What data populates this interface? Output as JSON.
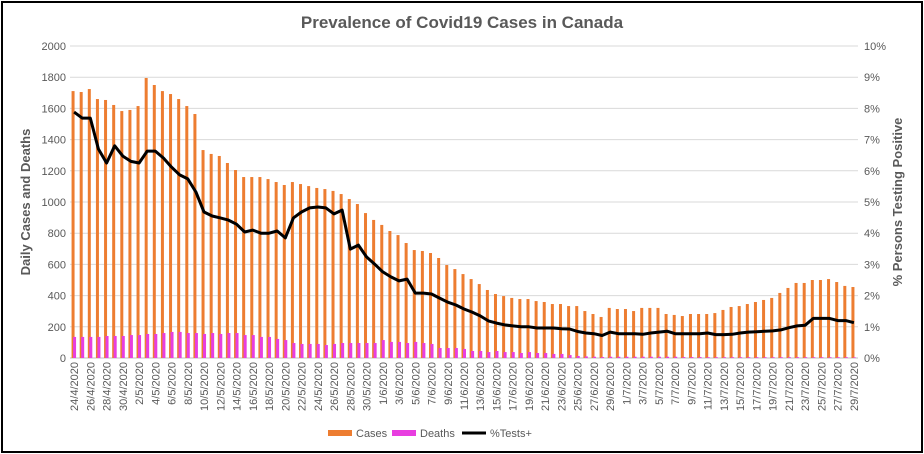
{
  "chart_data": {
    "type": "bar+line",
    "title": "Prevalence of Covid19 Cases in Canada",
    "ylabel": "Daily Cases and Deaths",
    "y2label": "% Persons Testing Positive",
    "ylim": [
      0,
      2000
    ],
    "y2lim": [
      0,
      10
    ],
    "yticks": [
      "0",
      "200",
      "400",
      "600",
      "800",
      "1000",
      "1200",
      "1400",
      "1600",
      "1800",
      "2000"
    ],
    "y2ticks": [
      "0%",
      "1%",
      "2%",
      "3%",
      "4%",
      "5%",
      "6%",
      "7%",
      "8%",
      "9%",
      "10%"
    ],
    "grid": true,
    "legend_position": "bottom",
    "colors": {
      "Cases": "#ed7d31",
      "Deaths": "#e83ee0",
      "%Tests+": "#000000"
    },
    "categories": [
      "24/4/2020",
      "25/4/2020",
      "26/4/2020",
      "27/4/2020",
      "28/4/2020",
      "29/4/2020",
      "30/4/2020",
      "1/5/2020",
      "2/5/2020",
      "3/5/2020",
      "4/5/2020",
      "5/5/2020",
      "6/5/2020",
      "7/5/2020",
      "8/5/2020",
      "9/5/2020",
      "10/5/2020",
      "11/5/2020",
      "12/5/2020",
      "13/5/2020",
      "14/5/2020",
      "15/5/2020",
      "16/5/2020",
      "17/5/2020",
      "18/5/2020",
      "19/5/2020",
      "20/5/2020",
      "21/5/2020",
      "22/5/2020",
      "23/5/2020",
      "24/5/2020",
      "25/5/2020",
      "26/5/2020",
      "27/5/2020",
      "28/5/2020",
      "29/5/2020",
      "30/5/2020",
      "31/5/2020",
      "1/6/2020",
      "2/6/2020",
      "3/6/2020",
      "4/6/2020",
      "5/6/2020",
      "6/6/2020",
      "7/6/2020",
      "8/6/2020",
      "9/6/2020",
      "10/6/2020",
      "11/6/2020",
      "12/6/2020",
      "13/6/2020",
      "14/6/2020",
      "15/6/2020",
      "16/6/2020",
      "17/6/2020",
      "18/6/2020",
      "19/6/2020",
      "20/6/2020",
      "21/6/2020",
      "22/6/2020",
      "23/6/2020",
      "24/6/2020",
      "25/6/2020",
      "26/6/2020",
      "27/6/2020",
      "28/6/2020",
      "29/6/2020",
      "30/6/2020",
      "1/7/2020",
      "2/7/2020",
      "3/7/2020",
      "4/7/2020",
      "5/7/2020",
      "6/7/2020",
      "7/7/2020",
      "8/7/2020",
      "9/7/2020",
      "10/7/2020",
      "11/7/2020",
      "12/7/2020",
      "13/7/2020",
      "14/7/2020",
      "15/7/2020",
      "16/7/2020",
      "17/7/2020",
      "18/7/2020",
      "19/7/2020",
      "20/7/2020",
      "21/7/2020",
      "22/7/2020",
      "23/7/2020",
      "24/7/2020",
      "25/7/2020",
      "26/7/2020",
      "27/7/2020",
      "28/7/2020",
      "29/7/2020"
    ],
    "series": [
      {
        "name": "Cases",
        "type": "bar",
        "axis": "left",
        "values": [
          1711,
          1705,
          1724,
          1660,
          1654,
          1622,
          1583,
          1590,
          1615,
          1795,
          1750,
          1711,
          1692,
          1660,
          1615,
          1564,
          1333,
          1308,
          1295,
          1250,
          1205,
          1160,
          1160,
          1160,
          1147,
          1128,
          1109,
          1128,
          1115,
          1102,
          1090,
          1083,
          1071,
          1051,
          1019,
          987,
          929,
          885,
          853,
          814,
          788,
          737,
          692,
          686,
          673,
          641,
          596,
          570,
          538,
          506,
          474,
          436,
          410,
          397,
          385,
          378,
          378,
          365,
          359,
          346,
          346,
          333,
          333,
          301,
          282,
          263,
          321,
          314,
          314,
          301,
          321,
          321,
          321,
          282,
          276,
          269,
          282,
          282,
          282,
          288,
          308,
          327,
          333,
          346,
          359,
          372,
          385,
          417,
          449,
          481,
          481,
          500,
          500,
          506,
          487,
          462,
          455
        ]
      },
      {
        "name": "Deaths",
        "type": "bar",
        "axis": "left",
        "values": [
          135,
          135,
          135,
          135,
          141,
          141,
          141,
          147,
          147,
          154,
          154,
          160,
          167,
          167,
          160,
          160,
          154,
          160,
          154,
          160,
          160,
          147,
          147,
          135,
          135,
          122,
          115,
          96,
          90,
          90,
          90,
          83,
          90,
          96,
          96,
          96,
          96,
          96,
          115,
          103,
          103,
          96,
          103,
          96,
          90,
          64,
          64,
          64,
          58,
          45,
          45,
          38,
          45,
          38,
          38,
          32,
          38,
          32,
          32,
          26,
          26,
          19,
          13,
          10,
          8,
          6,
          8,
          8,
          8,
          8,
          8,
          8,
          8,
          8,
          8,
          6,
          6,
          6,
          5,
          5,
          5,
          5,
          5,
          5,
          5,
          5,
          5,
          5,
          5,
          5,
          5,
          5,
          5,
          5,
          5,
          5,
          4
        ]
      },
      {
        "name": "%Tests+",
        "type": "line",
        "axis": "right",
        "values": [
          7.88,
          7.69,
          7.69,
          6.7,
          6.25,
          6.8,
          6.47,
          6.3,
          6.25,
          6.63,
          6.63,
          6.41,
          6.12,
          5.87,
          5.74,
          5.32,
          4.68,
          4.55,
          4.49,
          4.42,
          4.29,
          4.04,
          4.1,
          4.0,
          4.0,
          4.07,
          3.85,
          4.49,
          4.68,
          4.81,
          4.84,
          4.81,
          4.62,
          4.74,
          3.49,
          3.62,
          3.24,
          3.01,
          2.76,
          2.6,
          2.47,
          2.53,
          2.08,
          2.08,
          2.05,
          1.92,
          1.79,
          1.7,
          1.57,
          1.47,
          1.35,
          1.19,
          1.12,
          1.06,
          1.03,
          1.0,
          1.0,
          0.96,
          0.96,
          0.96,
          0.94,
          0.93,
          0.85,
          0.8,
          0.78,
          0.72,
          0.83,
          0.78,
          0.78,
          0.78,
          0.76,
          0.8,
          0.83,
          0.86,
          0.78,
          0.78,
          0.78,
          0.78,
          0.8,
          0.75,
          0.75,
          0.76,
          0.8,
          0.83,
          0.84,
          0.86,
          0.87,
          0.9,
          0.97,
          1.03,
          1.05,
          1.27,
          1.27,
          1.27,
          1.2,
          1.2,
          1.13
        ]
      }
    ]
  }
}
